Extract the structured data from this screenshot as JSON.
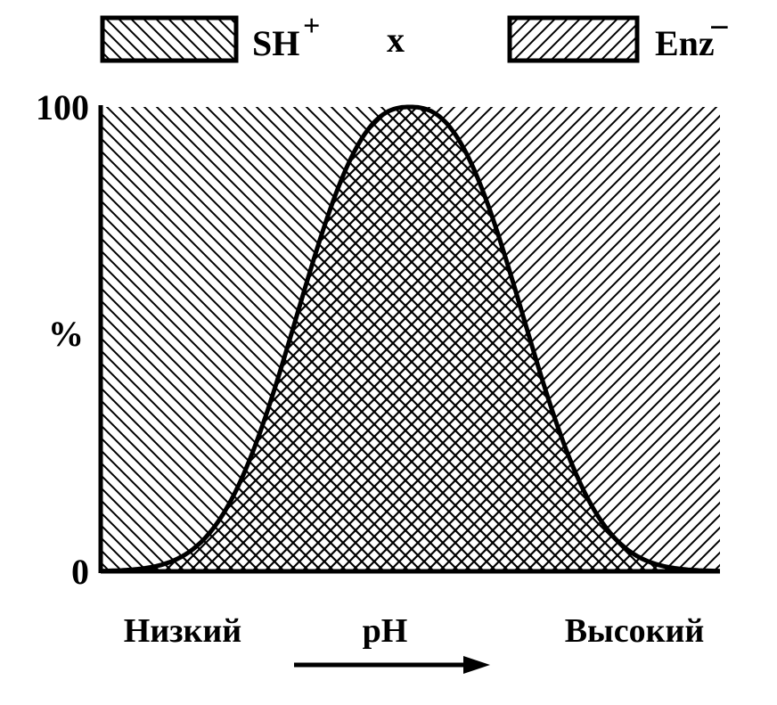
{
  "legend": {
    "left": {
      "label": "SH",
      "charge": "+"
    },
    "joiner": "x",
    "right": {
      "label": "Enz",
      "charge": "−"
    }
  },
  "y_axis": {
    "label": "%",
    "ticks": [
      0,
      100
    ]
  },
  "x_axis": {
    "low": "Низкий",
    "label": "pH",
    "high": "Высокий"
  }
}
